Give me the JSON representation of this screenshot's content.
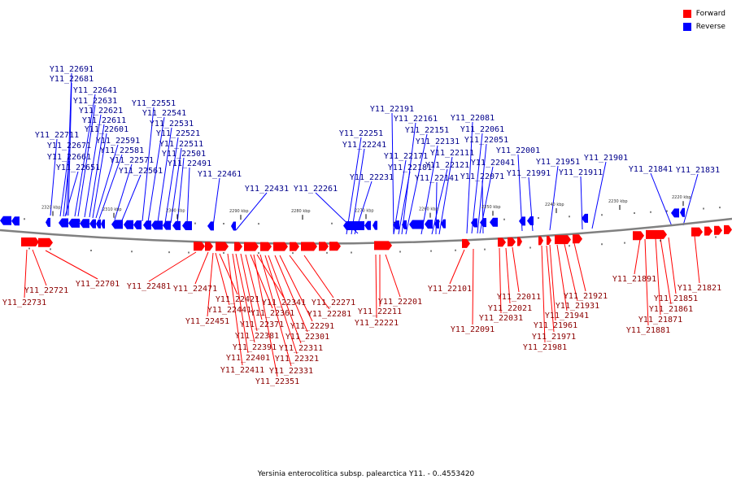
{
  "colors": {
    "forward": "#ff0000",
    "reverse": "#0000ff",
    "backbone": "#808080"
  },
  "legend": {
    "forward": "Forward",
    "reverse": "Reverse"
  },
  "footer": {
    "title": "Yersinia enterocolitica subsp. palearctica Y11. - 0..4553420"
  },
  "kbp_labels": [
    "2320 kbp",
    "2310 kbp",
    "2300 kbp",
    "2290 kbp",
    "2280 kbp",
    "2270 kbp",
    "2260 kbp",
    "2250 kbp",
    "2240 kbp",
    "2230 kbp",
    "2220 kbp"
  ],
  "reverse_genes": [
    "Y11_22691",
    "Y11_22681",
    "Y11_22641",
    "Y11_22631",
    "Y11_22621",
    "Y11_22611",
    "Y11_22601",
    "Y11_22591",
    "Y11_22581",
    "Y11_22571",
    "Y11_22561",
    "Y11_22711",
    "Y11_22671",
    "Y11_22661",
    "Y11_22651",
    "Y11_22551",
    "Y11_22541",
    "Y11_22531",
    "Y11_22521",
    "Y11_22511",
    "Y11_22501",
    "Y11_22491",
    "Y11_22461",
    "Y11_22431",
    "Y11_22261",
    "Y11_22251",
    "Y11_22241",
    "Y11_22231",
    "Y11_22191",
    "Y11_22161",
    "Y11_22151",
    "Y11_22171",
    "Y11_22181",
    "Y11_22131",
    "Y11_22121",
    "Y11_22111",
    "Y11_22141",
    "Y11_22081",
    "Y11_22061",
    "Y11_22051",
    "Y11_22041",
    "Y11_22071",
    "Y11_22001",
    "Y11_21991",
    "Y11_21951",
    "Y11_21911",
    "Y11_21901",
    "Y11_21841",
    "Y11_21831"
  ],
  "forward_genes": [
    "Y11_22731",
    "Y11_22721",
    "Y11_22701",
    "Y11_22481",
    "Y11_22471",
    "Y11_22451",
    "Y11_22441",
    "Y11_22421",
    "Y11_22411",
    "Y11_22401",
    "Y11_22391",
    "Y11_22381",
    "Y11_22371",
    "Y11_22361",
    "Y11_22351",
    "Y11_22341",
    "Y11_22331",
    "Y11_22321",
    "Y11_22311",
    "Y11_22301",
    "Y11_22291",
    "Y11_22281",
    "Y11_22271",
    "Y11_22221",
    "Y11_22211",
    "Y11_22201",
    "Y11_22101",
    "Y11_22091",
    "Y11_22031",
    "Y11_22021",
    "Y11_22011",
    "Y11_21981",
    "Y11_21971",
    "Y11_21961",
    "Y11_21941",
    "Y11_21931",
    "Y11_21921",
    "Y11_21891",
    "Y11_21881",
    "Y11_21871",
    "Y11_21861",
    "Y11_21851",
    "Y11_21821"
  ]
}
